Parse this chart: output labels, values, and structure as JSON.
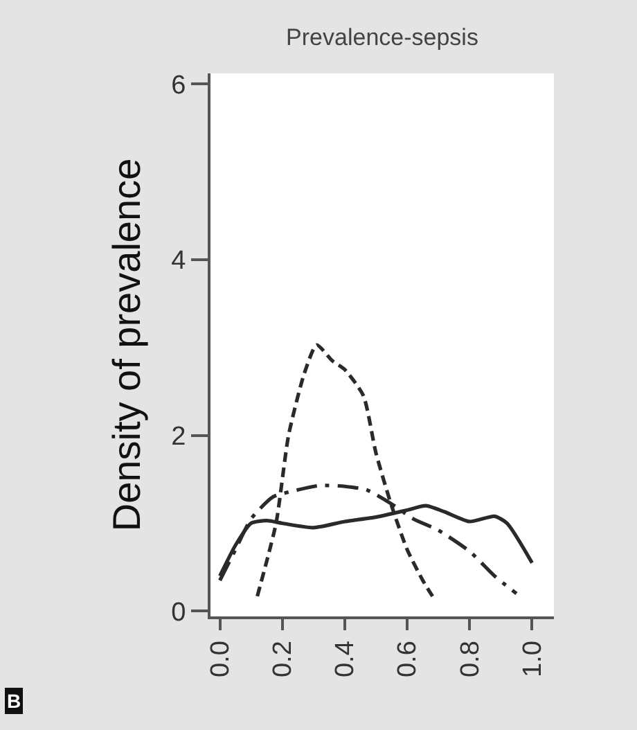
{
  "chart_data": {
    "type": "line",
    "title": "Prevalence-sepsis",
    "ylabel": "Density of prevalence",
    "annotations": [
      "B"
    ],
    "xlim": [
      -0.03,
      1.07
    ],
    "ylim": [
      -0.06,
      6.12
    ],
    "xticks": [
      {
        "value": 0,
        "label": "0.0"
      },
      0.2,
      0.4,
      0.6,
      0.8,
      {
        "value": 1,
        "label": "1.0"
      }
    ],
    "yticks": [
      0,
      2,
      4,
      6
    ],
    "grid": false,
    "marker": "none",
    "series": [
      {
        "color": "#2a2a2a",
        "line_style": "solid",
        "x": [
          0,
          0.05,
          0.1,
          0.15,
          0.2,
          0.3,
          0.4,
          0.5,
          0.6,
          0.66,
          0.72,
          0.8,
          0.88,
          0.92,
          1.0
        ],
        "values": [
          0.4,
          0.75,
          1.0,
          1.03,
          1.0,
          0.95,
          1.02,
          1.07,
          1.15,
          1.2,
          1.13,
          1.02,
          1.08,
          1.0,
          0.55
        ]
      },
      {
        "color": "#2a2a2a",
        "line_style": "dashed",
        "x": [
          0.12,
          0.18,
          0.22,
          0.27,
          0.31,
          0.36,
          0.4,
          0.46,
          0.5,
          0.55,
          0.6,
          0.65,
          0.69
        ],
        "values": [
          0.17,
          1.0,
          2.0,
          2.7,
          3.03,
          2.85,
          2.75,
          2.45,
          1.8,
          1.2,
          0.7,
          0.35,
          0.12
        ]
      },
      {
        "color": "#2a2a2a",
        "line_style": "dotted",
        "x": [
          0,
          0.05,
          0.1,
          0.17,
          0.25,
          0.32,
          0.4,
          0.47,
          0.55,
          0.62,
          0.7,
          0.8,
          0.88,
          0.95
        ],
        "values": [
          0.35,
          0.7,
          1.05,
          1.3,
          1.38,
          1.43,
          1.42,
          1.38,
          1.22,
          1.05,
          0.92,
          0.68,
          0.4,
          0.2
        ]
      }
    ]
  }
}
